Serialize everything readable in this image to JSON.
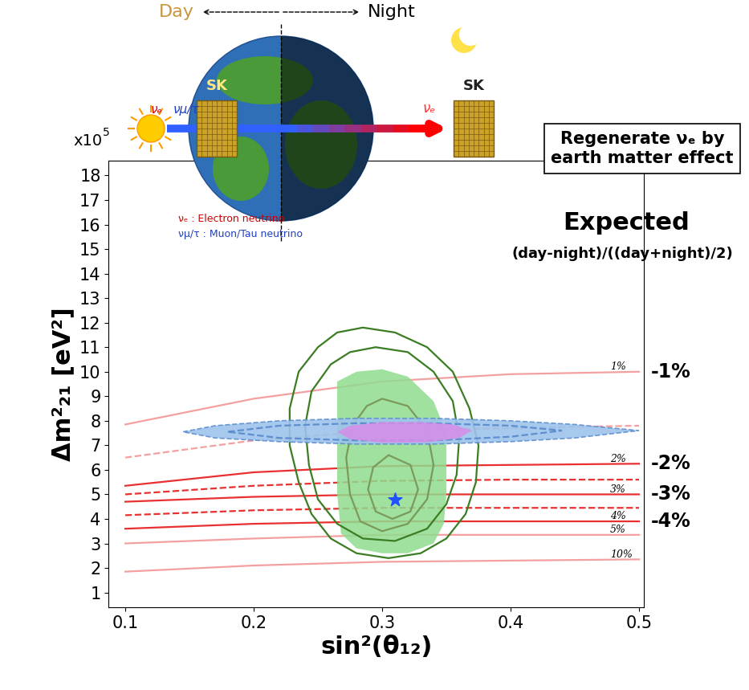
{
  "chart_data": {
    "type": "contour",
    "title": "Expected",
    "subtitle": "(day-night)/((day+night)/2)",
    "xlabel": "sin²(θ₁₂)",
    "ylabel": "Δm²₂₁ [eV²]",
    "y_multiplier": "x10",
    "y_multiplier_exponent": "5",
    "xlim": [
      0.087,
      0.504
    ],
    "ylim": [
      0.4,
      18.6
    ],
    "xticks": [
      0.1,
      0.2,
      0.3,
      0.4,
      0.5
    ],
    "yticks": [
      1,
      2,
      3,
      4,
      5,
      6,
      7,
      8,
      9,
      10,
      11,
      12,
      13,
      14,
      15,
      16,
      17,
      18
    ],
    "grid": false,
    "series": [
      {
        "name": "1%",
        "type": "line",
        "color": "#f4a0a0",
        "line_style": "solid",
        "annotation": "-1%",
        "x": [
          0.1,
          0.2,
          0.3,
          0.4,
          0.5
        ],
        "values": [
          7.85,
          8.9,
          9.6,
          9.9,
          10.0
        ]
      },
      {
        "type": "line",
        "color": "#f4a0a0",
        "line_style": "dashed",
        "x": [
          0.1,
          0.2,
          0.3,
          0.4,
          0.5
        ],
        "values": [
          6.5,
          7.2,
          7.6,
          7.7,
          7.8
        ]
      },
      {
        "name": "2%",
        "type": "line",
        "color": "#e83030",
        "line_style": "solid",
        "annotation": "-2%",
        "x": [
          0.1,
          0.2,
          0.3,
          0.4,
          0.5
        ],
        "values": [
          5.35,
          5.9,
          6.15,
          6.2,
          6.25
        ]
      },
      {
        "type": "line",
        "color": "#e83030",
        "line_style": "dashed",
        "x": [
          0.1,
          0.2,
          0.3,
          0.4,
          0.5
        ],
        "values": [
          5.0,
          5.35,
          5.55,
          5.6,
          5.6
        ]
      },
      {
        "name": "3%",
        "type": "line",
        "color": "#e83030",
        "line_style": "solid",
        "annotation": "-3%",
        "x": [
          0.1,
          0.2,
          0.3,
          0.4,
          0.5
        ],
        "values": [
          4.7,
          4.9,
          5.0,
          5.0,
          5.0
        ]
      },
      {
        "type": "line",
        "color": "#e83030",
        "line_style": "dashed",
        "x": [
          0.1,
          0.2,
          0.3,
          0.4,
          0.5
        ],
        "values": [
          4.15,
          4.35,
          4.45,
          4.45,
          4.45
        ]
      },
      {
        "name": "4%",
        "type": "line",
        "color": "#e83030",
        "line_style": "solid",
        "annotation": "-4%",
        "x": [
          0.1,
          0.2,
          0.3,
          0.4,
          0.5
        ],
        "values": [
          3.6,
          3.8,
          3.9,
          3.9,
          3.9
        ]
      },
      {
        "name": "5%",
        "type": "line",
        "color": "#f4a0a0",
        "line_style": "solid",
        "x": [
          0.1,
          0.2,
          0.3,
          0.4,
          0.5
        ],
        "values": [
          3.0,
          3.2,
          3.35,
          3.35,
          3.35
        ]
      },
      {
        "name": "10%",
        "type": "line",
        "color": "#f4a0a0",
        "line_style": "solid",
        "x": [
          0.1,
          0.2,
          0.3,
          0.4,
          0.5
        ],
        "values": [
          1.85,
          2.1,
          2.25,
          2.3,
          2.35
        ]
      },
      {
        "type": "area",
        "color": "#8fdc8f",
        "x": [
          0.265,
          0.28,
          0.3,
          0.32,
          0.34,
          0.35,
          0.35,
          0.348,
          0.34,
          0.32,
          0.3,
          0.28,
          0.268,
          0.265
        ],
        "values": [
          9.6,
          10.0,
          10.1,
          9.8,
          8.8,
          7.5,
          5.0,
          3.8,
          3.0,
          2.6,
          2.6,
          2.8,
          3.4,
          5.0
        ]
      },
      {
        "type": "contour",
        "color": "#3b7d23",
        "line_style": "solid",
        "x": [
          0.285,
          0.31,
          0.335,
          0.355,
          0.368,
          0.375,
          0.373,
          0.365,
          0.35,
          0.33,
          0.305,
          0.28,
          0.26,
          0.245,
          0.235,
          0.228,
          0.228,
          0.235,
          0.25,
          0.265
        ],
        "values": [
          11.8,
          11.6,
          11.0,
          10.0,
          8.5,
          7.0,
          5.5,
          4.2,
          3.2,
          2.6,
          2.4,
          2.6,
          3.2,
          4.2,
          5.5,
          7.0,
          8.5,
          10.0,
          11.0,
          11.6
        ]
      },
      {
        "type": "contour",
        "color": "#3b7d23",
        "line_style": "solid",
        "x": [
          0.295,
          0.32,
          0.34,
          0.355,
          0.36,
          0.358,
          0.35,
          0.335,
          0.31,
          0.285,
          0.265,
          0.25,
          0.243,
          0.24,
          0.245,
          0.26,
          0.275
        ],
        "values": [
          11.0,
          10.8,
          10.0,
          8.8,
          7.3,
          5.8,
          4.6,
          3.6,
          3.1,
          3.2,
          3.8,
          4.8,
          6.2,
          7.8,
          9.2,
          10.3,
          10.8
        ]
      },
      {
        "type": "contour",
        "color": "#7a9a5a",
        "line_style": "solid",
        "x": [
          0.3,
          0.32,
          0.335,
          0.34,
          0.335,
          0.32,
          0.3,
          0.283,
          0.275,
          0.272,
          0.277,
          0.288
        ],
        "values": [
          8.9,
          8.6,
          7.6,
          6.2,
          4.8,
          3.8,
          3.5,
          3.9,
          5.0,
          6.5,
          7.8,
          8.6
        ]
      },
      {
        "type": "contour",
        "color": "#7a9a5a",
        "line_style": "solid",
        "x": [
          0.305,
          0.322,
          0.328,
          0.322,
          0.308,
          0.295,
          0.289,
          0.293
        ],
        "values": [
          6.6,
          6.2,
          5.2,
          4.3,
          4.0,
          4.3,
          5.2,
          6.1
        ]
      },
      {
        "type": "area",
        "color": "#9cc3ec",
        "line_style": "dashed",
        "x": [
          0.145,
          0.17,
          0.22,
          0.28,
          0.34,
          0.4,
          0.45,
          0.5,
          0.45,
          0.4,
          0.34,
          0.28,
          0.22,
          0.17
        ],
        "values": [
          7.55,
          7.8,
          8.0,
          8.1,
          8.1,
          8.0,
          7.85,
          7.6,
          7.3,
          7.15,
          7.05,
          7.05,
          7.15,
          7.3
        ]
      },
      {
        "type": "contour",
        "color": "#5f8fcf",
        "line_style": "dashed",
        "x": [
          0.18,
          0.22,
          0.28,
          0.34,
          0.4,
          0.44,
          0.4,
          0.34,
          0.28,
          0.22
        ],
        "values": [
          7.55,
          7.8,
          7.9,
          7.9,
          7.8,
          7.6,
          7.35,
          7.2,
          7.2,
          7.3
        ]
      },
      {
        "type": "area",
        "color": "#d88ce8",
        "x": [
          0.265,
          0.275,
          0.3,
          0.33,
          0.355,
          0.37,
          0.36,
          0.335,
          0.3,
          0.275
        ],
        "values": [
          7.55,
          7.8,
          7.95,
          7.95,
          7.85,
          7.6,
          7.3,
          7.12,
          7.1,
          7.25
        ]
      },
      {
        "type": "scatter",
        "color": "#2050ff",
        "marker": "star",
        "x": [
          0.31
        ],
        "values": [
          4.8
        ]
      }
    ]
  },
  "diagram": {
    "day": "Day",
    "night": "Night",
    "detectors": [
      "SK",
      "SK"
    ],
    "box": "Regenerate νₑ by\nearth matter effect",
    "sun_neutrino": "νₑ",
    "arrow_neutrino": "νμ/τ",
    "night_neutrino": "νₑ",
    "legend_lines": [
      "νₑ : Electron neutrino",
      "νμ/τ : Muon/Tau neutrino"
    ]
  }
}
